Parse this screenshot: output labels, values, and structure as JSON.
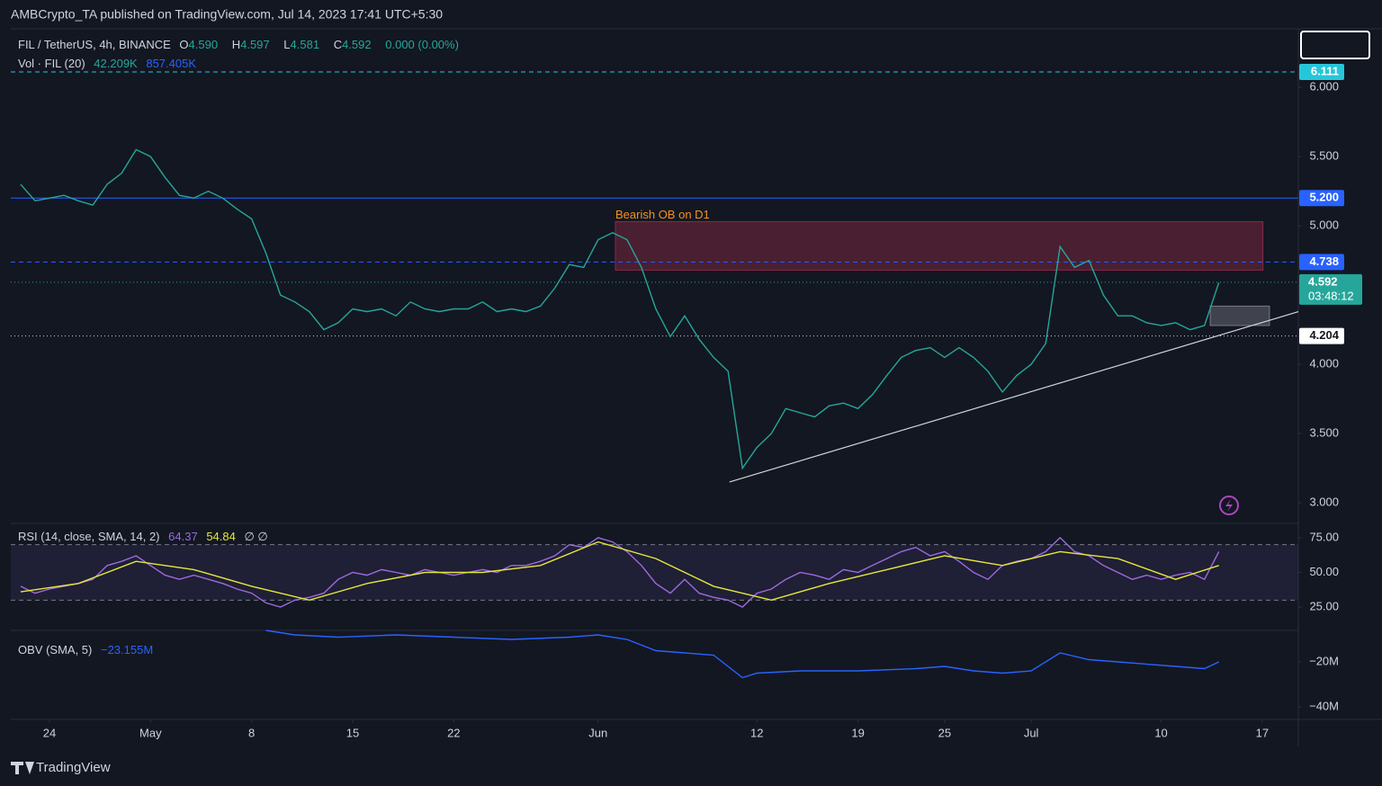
{
  "header": {
    "publisher": "AMBCrypto_TA published on TradingView.com, Jul 14, 2023 17:41 UTC+5:30"
  },
  "footer": {
    "brand": "TradingView"
  },
  "legend": {
    "symbol": "FIL / TetherUS, 4h, BINANCE",
    "ohlc": [
      {
        "key": "O",
        "value": "4.590"
      },
      {
        "key": "H",
        "value": "4.597"
      },
      {
        "key": "L",
        "value": "4.581"
      },
      {
        "key": "C",
        "value": "4.592"
      }
    ],
    "change": "0.000 (0.00%)",
    "volume": {
      "name": "Vol · FIL (20)",
      "values": [
        "42.209K",
        "857.405K"
      ]
    }
  },
  "chart_data": [
    {
      "type": "line",
      "xlim": [
        -2.68,
        86.5
      ],
      "xticks": [
        {
          "value": 0,
          "label": "24"
        },
        {
          "value": 7,
          "label": "May"
        },
        {
          "value": 14,
          "label": "8"
        },
        {
          "value": 21,
          "label": "15"
        },
        {
          "value": 28,
          "label": "22"
        },
        {
          "value": 38,
          "label": "Jun"
        },
        {
          "value": 49,
          "label": "12"
        },
        {
          "value": 56,
          "label": "19"
        },
        {
          "value": 62,
          "label": "25"
        },
        {
          "value": 68,
          "label": "Jul"
        },
        {
          "value": 77,
          "label": "10"
        },
        {
          "value": 84,
          "label": "17"
        }
      ],
      "ylim": [
        2.864,
        6.416
      ],
      "yticks": [
        {
          "value": 3,
          "label": "3.000"
        },
        {
          "value": 3.5,
          "label": "3.500"
        },
        {
          "value": 4,
          "label": "4.000"
        },
        {
          "value": 4.5,
          "label": "4.500"
        },
        {
          "value": 5,
          "label": "5.000"
        },
        {
          "value": 5.5,
          "label": "5.500"
        },
        {
          "value": 6,
          "label": "6.000"
        }
      ],
      "series": [
        {
          "color": "#26a69a",
          "x": [
            -2,
            -1,
            0,
            1,
            2,
            3,
            4,
            5,
            6,
            7,
            8,
            9,
            10,
            11,
            12,
            13,
            14,
            15,
            16,
            17,
            18,
            19,
            20,
            21,
            22,
            23,
            24,
            25,
            26,
            27,
            28,
            29,
            30,
            31,
            32,
            33,
            34,
            35,
            36,
            37,
            38,
            39,
            40,
            41,
            42,
            43,
            44,
            45,
            46,
            47,
            48,
            49,
            50,
            51,
            52,
            53,
            54,
            55,
            56,
            57,
            58,
            59,
            60,
            61,
            62,
            63,
            64,
            65,
            66,
            67,
            68,
            69,
            70,
            71,
            72,
            73,
            74,
            75,
            76,
            77,
            78,
            79,
            80,
            81
          ],
          "values": [
            5.3,
            5.18,
            5.2,
            5.22,
            5.18,
            5.15,
            5.3,
            5.38,
            5.55,
            5.5,
            5.35,
            5.22,
            5.2,
            5.25,
            5.2,
            5.12,
            5.05,
            4.8,
            4.5,
            4.45,
            4.38,
            4.25,
            4.3,
            4.4,
            4.38,
            4.4,
            4.35,
            4.45,
            4.4,
            4.38,
            4.4,
            4.4,
            4.45,
            4.38,
            4.4,
            4.38,
            4.42,
            4.55,
            4.72,
            4.7,
            4.9,
            4.95,
            4.9,
            4.7,
            4.4,
            4.2,
            4.35,
            4.18,
            4.05,
            3.95,
            3.25,
            3.4,
            3.5,
            3.68,
            3.65,
            3.62,
            3.7,
            3.72,
            3.68,
            3.78,
            3.92,
            4.05,
            4.1,
            4.12,
            4.05,
            4.12,
            4.05,
            3.95,
            3.8,
            3.92,
            4.0,
            4.15,
            4.85,
            4.7,
            4.75,
            4.5,
            4.35,
            4.35,
            4.3,
            4.28,
            4.3,
            4.25,
            4.28,
            4.59
          ]
        }
      ],
      "levels": [
        {
          "value": 6.111,
          "label": "6.111",
          "color": "#26c6da",
          "style": "dashed"
        },
        {
          "value": 5.2,
          "label": "5.200",
          "color": "#2962ff",
          "style": "solid"
        },
        {
          "value": 4.738,
          "label": "4.738",
          "color": "#2962ff",
          "style": "dashed"
        },
        {
          "value": 4.204,
          "label": "4.204",
          "color": "#d1d4dc",
          "style": "dotted"
        }
      ],
      "last_price": {
        "value": 4.592,
        "label": "4.592",
        "countdown": "03:48:12",
        "color": "#26a69a"
      },
      "zones": [
        {
          "x": [
            39.2,
            84.05
          ],
          "y": [
            4.68,
            5.03
          ],
          "label": "Bearish OB on D1",
          "color": "#8c2a45"
        },
        {
          "x": [
            80.4,
            84.5
          ],
          "y": [
            4.28,
            4.42
          ],
          "color": "#787b86"
        }
      ],
      "trendline": {
        "x": [
          47.1,
          86.5
        ],
        "y": [
          3.15,
          4.38
        ],
        "color": "#d1d4dc"
      }
    },
    {
      "type": "line",
      "title": "RSI (14, close, SMA, 14, 2)",
      "legend_values": [
        "64.37",
        "54.84",
        "∅ ∅"
      ],
      "ylim": [
        8.8,
        83.4
      ],
      "yticks": [
        {
          "value": 25,
          "label": "25.00"
        },
        {
          "value": 50,
          "label": "50.00"
        },
        {
          "value": 75,
          "label": "75.00"
        }
      ],
      "band": [
        30,
        70
      ],
      "series": [
        {
          "color": "#9c6ade",
          "x": [
            -2,
            -1,
            0,
            1,
            2,
            3,
            4,
            5,
            6,
            7,
            8,
            9,
            10,
            11,
            12,
            13,
            14,
            15,
            16,
            17,
            18,
            19,
            20,
            21,
            22,
            23,
            24,
            25,
            26,
            27,
            28,
            29,
            30,
            31,
            32,
            33,
            34,
            35,
            36,
            37,
            38,
            39,
            40,
            41,
            42,
            43,
            44,
            45,
            46,
            47,
            48,
            49,
            50,
            51,
            52,
            53,
            54,
            55,
            56,
            57,
            58,
            59,
            60,
            61,
            62,
            63,
            64,
            65,
            66,
            67,
            68,
            69,
            70,
            71,
            72,
            73,
            74,
            75,
            76,
            77,
            78,
            79,
            80,
            81
          ],
          "values": [
            40,
            35,
            38,
            40,
            42,
            45,
            55,
            58,
            62,
            55,
            48,
            45,
            48,
            45,
            42,
            38,
            35,
            28,
            25,
            30,
            32,
            35,
            45,
            50,
            48,
            52,
            50,
            48,
            52,
            50,
            48,
            50,
            52,
            50,
            55,
            55,
            58,
            62,
            70,
            68,
            75,
            72,
            65,
            55,
            42,
            35,
            45,
            35,
            32,
            30,
            25,
            35,
            38,
            45,
            50,
            48,
            45,
            52,
            50,
            55,
            60,
            65,
            68,
            62,
            65,
            58,
            50,
            45,
            55,
            58,
            60,
            65,
            75,
            65,
            62,
            55,
            50,
            45,
            48,
            45,
            48,
            50,
            45,
            65
          ]
        },
        {
          "color": "#e5e83a",
          "x": [
            -2,
            2,
            6,
            10,
            14,
            18,
            22,
            26,
            30,
            34,
            38,
            42,
            46,
            50,
            54,
            58,
            62,
            66,
            70,
            74,
            78,
            81
          ],
          "values": [
            36,
            42,
            58,
            52,
            40,
            30,
            42,
            50,
            50,
            55,
            72,
            60,
            40,
            30,
            42,
            52,
            62,
            55,
            65,
            60,
            45,
            55
          ]
        }
      ]
    },
    {
      "type": "line",
      "title": "OBV (SMA, 5)",
      "legend_values": [
        "−23.155M"
      ],
      "ylim": [
        -45.6,
        -6.8
      ],
      "yticks": [
        {
          "value": -20,
          "label": "−20M"
        },
        {
          "value": -40,
          "label": "−40M"
        }
      ],
      "series": [
        {
          "color": "#2962ff",
          "x": [
            15,
            17,
            20,
            24,
            28,
            32,
            36,
            38,
            40,
            42,
            44,
            46,
            48,
            49,
            52,
            56,
            60,
            62,
            64,
            66,
            68,
            70,
            72,
            74,
            78,
            80,
            81
          ],
          "values": [
            -6,
            -8,
            -9,
            -8,
            -9,
            -10,
            -9,
            -8,
            -10,
            -15,
            -16,
            -17,
            -27,
            -25,
            -24,
            -24,
            -23,
            -22,
            -24,
            -25,
            -24,
            -16,
            -19,
            -20,
            -22,
            -23,
            -20
          ]
        }
      ]
    }
  ]
}
